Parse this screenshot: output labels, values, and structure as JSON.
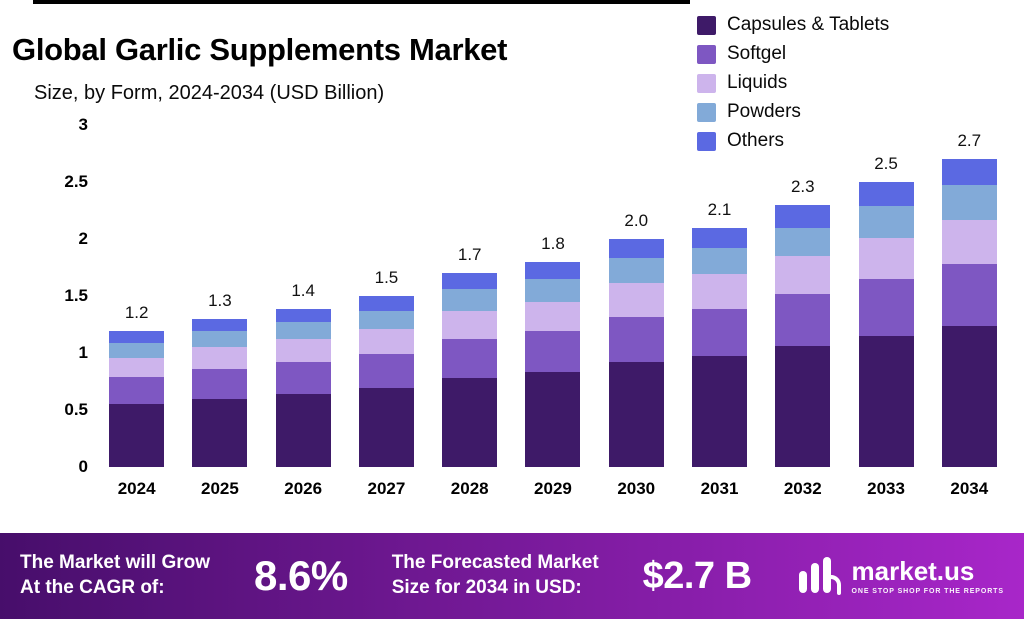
{
  "title": "Global Garlic Supplements Market",
  "subtitle": "Size, by Form, 2024-2034 (USD Billion)",
  "legend": [
    {
      "label": "Capsules & Tablets",
      "color": "#3e1a68"
    },
    {
      "label": "Softgel",
      "color": "#7e57c2"
    },
    {
      "label": "Liquids",
      "color": "#cdb4ec"
    },
    {
      "label": "Powders",
      "color": "#82aad8"
    },
    {
      "label": "Others",
      "color": "#5b69e2"
    }
  ],
  "chart_data": {
    "type": "bar",
    "stacked": true,
    "title": "Global Garlic Supplements Market",
    "subtitle": "Size, by Form, 2024-2034 (USD Billion)",
    "unit": "USD Billion",
    "ylim": [
      0,
      3
    ],
    "ytick_labels": [
      "3",
      "2.5",
      "2",
      "1.5",
      "1",
      "0.5",
      "0"
    ],
    "grid": false,
    "legend_position": "top-right",
    "categories": [
      "2024",
      "2025",
      "2026",
      "2027",
      "2028",
      "2029",
      "2030",
      "2031",
      "2032",
      "2033",
      "2034"
    ],
    "totals": [
      "1.2",
      "1.3",
      "1.4",
      "1.5",
      "1.7",
      "1.8",
      "2.0",
      "2.1",
      "2.3",
      "2.5",
      "2.7"
    ],
    "series": [
      {
        "name": "Capsules & Tablets",
        "color": "#3e1a68",
        "values": [
          0.55,
          0.6,
          0.64,
          0.69,
          0.78,
          0.83,
          0.92,
          0.97,
          1.06,
          1.15,
          1.24
        ]
      },
      {
        "name": "Softgel",
        "color": "#7e57c2",
        "values": [
          0.24,
          0.26,
          0.28,
          0.3,
          0.34,
          0.36,
          0.4,
          0.42,
          0.46,
          0.5,
          0.54
        ]
      },
      {
        "name": "Liquids",
        "color": "#cdb4ec",
        "values": [
          0.17,
          0.19,
          0.2,
          0.22,
          0.25,
          0.26,
          0.29,
          0.3,
          0.33,
          0.36,
          0.39
        ]
      },
      {
        "name": "Powders",
        "color": "#82aad8",
        "values": [
          0.13,
          0.14,
          0.15,
          0.16,
          0.19,
          0.2,
          0.22,
          0.23,
          0.25,
          0.28,
          0.3
        ]
      },
      {
        "name": "Others",
        "color": "#5b69e2",
        "values": [
          0.1,
          0.11,
          0.12,
          0.13,
          0.14,
          0.15,
          0.17,
          0.18,
          0.2,
          0.21,
          0.23
        ]
      }
    ]
  },
  "footer": {
    "cagr_label_line1": "The Market will Grow",
    "cagr_label_line2": "At the CAGR of:",
    "cagr_value": "8.6%",
    "forecast_label_line1": "The Forecasted Market",
    "forecast_label_line2": "Size for 2034 in USD:",
    "forecast_value": "$2.7 B",
    "brand": "market.us",
    "brand_tagline": "ONE STOP SHOP FOR THE REPORTS",
    "gradient_start": "#470e6b",
    "gradient_end": "#a826c9"
  }
}
